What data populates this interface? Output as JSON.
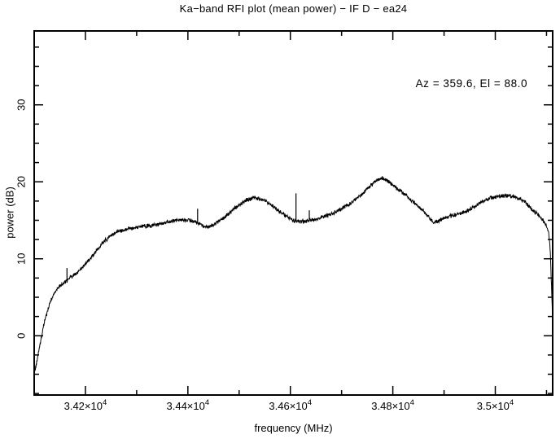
{
  "chart_data": {
    "type": "line",
    "title": "Ka−band RFI plot (mean power) − IF D − ea24",
    "xlabel": "frequency (MHz)",
    "ylabel": "power (dB)",
    "annotation": "Az = 359.6, El = 88.0",
    "line_color": "#000000",
    "frame_color": "#000000",
    "background": "#ffffff",
    "xlim": [
      34100,
      35112
    ],
    "ylim": [
      -7.7,
      39.6
    ],
    "grid": false,
    "x_major_ticks": [
      {
        "value": 34200,
        "mantissa": "3.42×10",
        "exp": "4"
      },
      {
        "value": 34400,
        "mantissa": "3.44×10",
        "exp": "4"
      },
      {
        "value": 34600,
        "mantissa": "3.46×10",
        "exp": "4"
      },
      {
        "value": 34800,
        "mantissa": "3.48×10",
        "exp": "4"
      },
      {
        "value": 35000,
        "mantissa": "3.5×10",
        "exp": "4"
      }
    ],
    "x_minor_step": 100,
    "y_major_ticks": [
      {
        "value": 0,
        "label": "0"
      },
      {
        "value": 10,
        "label": "10"
      },
      {
        "value": 20,
        "label": "20"
      },
      {
        "value": 30,
        "label": "30"
      }
    ],
    "y_minor_step": 2.5,
    "noise_db": 0.22,
    "envelope_points": [
      [
        34100,
        -5.0
      ],
      [
        34104,
        -3.8
      ],
      [
        34108,
        -2.4
      ],
      [
        34113,
        -0.6
      ],
      [
        34118,
        1.2
      ],
      [
        34124,
        2.8
      ],
      [
        34131,
        4.3
      ],
      [
        34140,
        5.6
      ],
      [
        34150,
        6.5
      ],
      [
        34160,
        7.0
      ],
      [
        34170,
        7.5
      ],
      [
        34180,
        8.0
      ],
      [
        34190,
        8.6
      ],
      [
        34200,
        9.3
      ],
      [
        34210,
        10.1
      ],
      [
        34220,
        10.9
      ],
      [
        34232,
        11.9
      ],
      [
        34245,
        12.8
      ],
      [
        34258,
        13.4
      ],
      [
        34270,
        13.7
      ],
      [
        34285,
        13.9
      ],
      [
        34300,
        14.1
      ],
      [
        34315,
        14.2
      ],
      [
        34330,
        14.3
      ],
      [
        34345,
        14.5
      ],
      [
        34360,
        14.8
      ],
      [
        34375,
        15.0
      ],
      [
        34390,
        15.1
      ],
      [
        34405,
        15.0
      ],
      [
        34415,
        14.8
      ],
      [
        34425,
        14.5
      ],
      [
        34432,
        14.1
      ],
      [
        34440,
        14.2
      ],
      [
        34450,
        14.4
      ],
      [
        34462,
        14.9
      ],
      [
        34475,
        15.6
      ],
      [
        34490,
        16.5
      ],
      [
        34505,
        17.2
      ],
      [
        34515,
        17.6
      ],
      [
        34528,
        17.9
      ],
      [
        34540,
        17.8
      ],
      [
        34552,
        17.5
      ],
      [
        34565,
        16.9
      ],
      [
        34578,
        16.2
      ],
      [
        34592,
        15.5
      ],
      [
        34605,
        15.0
      ],
      [
        34618,
        14.8
      ],
      [
        34632,
        14.9
      ],
      [
        34645,
        15.1
      ],
      [
        34658,
        15.3
      ],
      [
        34672,
        15.6
      ],
      [
        34685,
        16.0
      ],
      [
        34700,
        16.5
      ],
      [
        34715,
        17.1
      ],
      [
        34730,
        17.8
      ],
      [
        34745,
        18.7
      ],
      [
        34757,
        19.5
      ],
      [
        34768,
        20.2
      ],
      [
        34778,
        20.5
      ],
      [
        34788,
        20.2
      ],
      [
        34800,
        19.6
      ],
      [
        34812,
        18.9
      ],
      [
        34824,
        18.4
      ],
      [
        34836,
        17.6
      ],
      [
        34848,
        16.9
      ],
      [
        34860,
        16.2
      ],
      [
        34872,
        15.3
      ],
      [
        34880,
        14.7
      ],
      [
        34888,
        14.9
      ],
      [
        34900,
        15.3
      ],
      [
        34915,
        15.6
      ],
      [
        34930,
        15.8
      ],
      [
        34945,
        16.2
      ],
      [
        34960,
        16.8
      ],
      [
        34975,
        17.4
      ],
      [
        34990,
        17.9
      ],
      [
        35005,
        18.1
      ],
      [
        35020,
        18.2
      ],
      [
        35035,
        18.1
      ],
      [
        35048,
        17.8
      ],
      [
        35060,
        17.2
      ],
      [
        35072,
        16.4
      ],
      [
        35082,
        15.8
      ],
      [
        35092,
        15.1
      ],
      [
        35100,
        14.3
      ],
      [
        35104,
        13.5
      ],
      [
        35107,
        11.5
      ],
      [
        35109,
        8.0
      ],
      [
        35111,
        4.0
      ],
      [
        35112,
        1.8
      ]
    ],
    "rfi_spikes": [
      {
        "freq": 34164,
        "base": 6.9,
        "peak": 8.8
      },
      {
        "freq": 34419,
        "base": 14.8,
        "peak": 16.5
      },
      {
        "freq": 34611,
        "base": 14.9,
        "peak": 18.5
      },
      {
        "freq": 34637,
        "base": 15.0,
        "peak": 16.3
      }
    ]
  }
}
